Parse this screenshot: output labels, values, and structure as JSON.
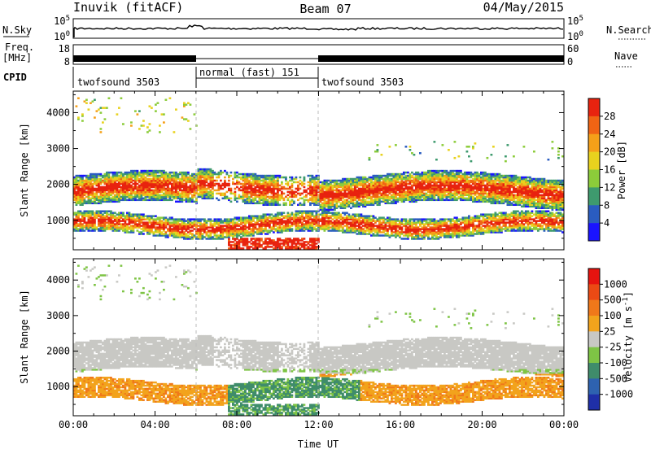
{
  "header": {
    "station": "Inuvik (fitACF)",
    "beam": "Beam 07",
    "date": "04/May/2015"
  },
  "left_labels": {
    "nsky": "N.Sky",
    "nsky_hi": "10^5",
    "nsky_lo": "10^0",
    "freq": "Freq.",
    "freq_unit": "[MHz]",
    "freq_hi": "18",
    "freq_lo": "8",
    "cpid": "CPID"
  },
  "right_labels": {
    "nsearch": "N.Search",
    "nsearch_hi": "10^5",
    "nsearch_lo": "10^0",
    "nave": "Nave",
    "nave_hi": "60",
    "nave_lo": "0"
  },
  "modes": [
    {
      "label": "twofsound 3503",
      "start": 0,
      "end": 6
    },
    {
      "label": "normal (fast) 151",
      "start": 6,
      "end": 12
    },
    {
      "label": "twofsound 3503",
      "start": 12,
      "end": 24
    }
  ],
  "chart_data": [
    {
      "type": "heatmap",
      "name": "power",
      "ylabel": "Slant Range [km]",
      "xlabel": "Time UT",
      "x_ticks": [
        "00:00",
        "04:00",
        "08:00",
        "12:00",
        "16:00",
        "20:00",
        "00:00"
      ],
      "y_ticks": [
        "1000",
        "2000",
        "3000",
        "4000"
      ],
      "xlim": [
        0,
        24
      ],
      "ylim": [
        180,
        4600
      ],
      "colorbar": {
        "label": "Power [dB]",
        "ticks": [
          "4",
          "8",
          "12",
          "16",
          "20",
          "24",
          "28"
        ],
        "colors": [
          "#1a14ff",
          "#2a5cc0",
          "#3e9a6e",
          "#8ccc3a",
          "#e8d21e",
          "#f5a019",
          "#f06414",
          "#e8230f"
        ]
      }
    },
    {
      "type": "heatmap",
      "name": "velocity",
      "ylabel": "Slant Range [km]",
      "xlabel": "Time UT",
      "x_ticks": [
        "00:00",
        "04:00",
        "08:00",
        "12:00",
        "16:00",
        "20:00",
        "00:00"
      ],
      "y_ticks": [
        "1000",
        "2000",
        "3000",
        "4000"
      ],
      "xlim": [
        0,
        24
      ],
      "ylim": [
        180,
        4600
      ],
      "colorbar": {
        "label": "Velocity [m s^-1]",
        "ticks": [
          "1000",
          "500",
          "100",
          "25",
          "-25",
          "-100",
          "-500",
          "-1000"
        ],
        "colors": [
          "#1f2fa8",
          "#2e62b0",
          "#3f8c6b",
          "#7ec445",
          "#c8c8c4",
          "#f2a31c",
          "#f0781a",
          "#eb4a14",
          "#e6140f"
        ]
      }
    }
  ]
}
